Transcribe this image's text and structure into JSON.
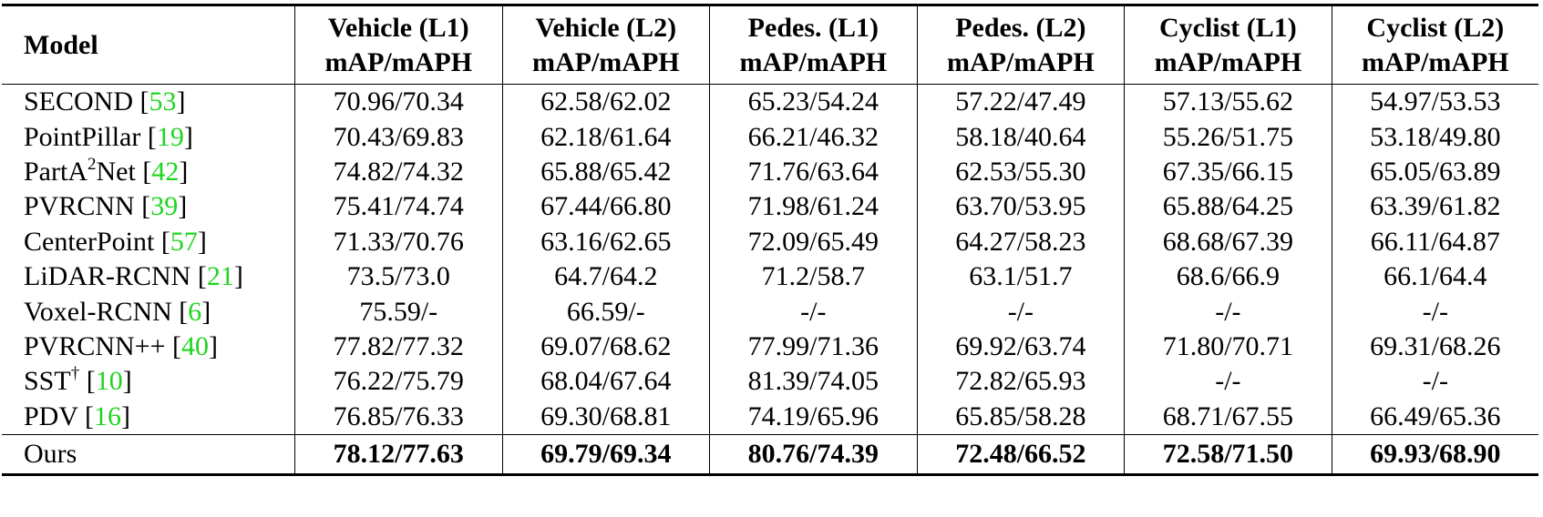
{
  "table": {
    "header": {
      "model": "Model",
      "metric_sub": "mAP/mAPH",
      "columns": [
        "Vehicle (L1)",
        "Vehicle (L2)",
        "Pedes. (L1)",
        "Pedes. (L2)",
        "Cyclist (L1)",
        "Cyclist (L2)"
      ]
    },
    "rows": [
      {
        "name": "SECOND",
        "sup": "",
        "cite": "53",
        "values": [
          "70.96/70.34",
          "62.58/62.02",
          "65.23/54.24",
          "57.22/47.49",
          "57.13/55.62",
          "54.97/53.53"
        ]
      },
      {
        "name": "PointPillar",
        "sup": "",
        "cite": "19",
        "values": [
          "70.43/69.83",
          "62.18/61.64",
          "66.21/46.32",
          "58.18/40.64",
          "55.26/51.75",
          "53.18/49.80"
        ]
      },
      {
        "name": "PartA",
        "sup": "2",
        "name_suffix": "Net",
        "cite": "42",
        "values": [
          "74.82/74.32",
          "65.88/65.42",
          "71.76/63.64",
          "62.53/55.30",
          "67.35/66.15",
          "65.05/63.89"
        ]
      },
      {
        "name": "PVRCNN",
        "sup": "",
        "cite": "39",
        "values": [
          "75.41/74.74",
          "67.44/66.80",
          "71.98/61.24",
          "63.70/53.95",
          "65.88/64.25",
          "63.39/61.82"
        ]
      },
      {
        "name": "CenterPoint",
        "sup": "",
        "cite": "57",
        "values": [
          "71.33/70.76",
          "63.16/62.65",
          "72.09/65.49",
          "64.27/58.23",
          "68.68/67.39",
          "66.11/64.87"
        ]
      },
      {
        "name": "LiDAR-RCNN",
        "sup": "",
        "cite": "21",
        "values": [
          "73.5/73.0",
          "64.7/64.2",
          "71.2/58.7",
          "63.1/51.7",
          "68.6/66.9",
          "66.1/64.4"
        ]
      },
      {
        "name": "Voxel-RCNN",
        "sup": "",
        "cite": "6",
        "values": [
          "75.59/-",
          "66.59/-",
          "-/-",
          "-/-",
          "-/-",
          "-/-"
        ]
      },
      {
        "name": "PVRCNN++",
        "sup": "",
        "cite": "40",
        "values": [
          "77.82/77.32",
          "69.07/68.62",
          "77.99/71.36",
          "69.92/63.74",
          "71.80/70.71",
          "69.31/68.26"
        ]
      },
      {
        "name": "SST",
        "sup": "†",
        "cite": "10",
        "values": [
          "76.22/75.79",
          "68.04/67.64",
          "81.39/74.05",
          "72.82/65.93",
          "-/-",
          "-/-"
        ]
      },
      {
        "name": "PDV",
        "sup": "",
        "cite": "16",
        "values": [
          "76.85/76.33",
          "69.30/68.81",
          "74.19/65.96",
          "65.85/58.28",
          "68.71/67.55",
          "66.49/65.36"
        ]
      }
    ],
    "ours": {
      "name": "Ours",
      "values": [
        "78.12/77.63",
        "69.79/69.34",
        "80.76/74.39",
        "72.48/66.52",
        "72.58/71.50",
        "69.93/68.90"
      ]
    }
  }
}
